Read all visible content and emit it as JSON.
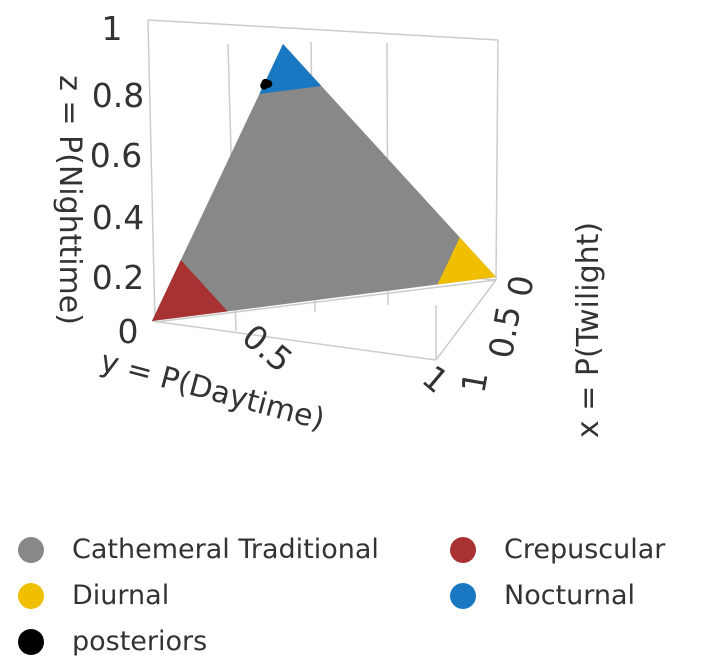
{
  "chart_data": {
    "type": "scatter3d",
    "axes": {
      "x": {
        "label": "x = P(Twilight)",
        "ticks": [
          "0",
          "0.5",
          "1"
        ],
        "range": [
          0,
          1
        ]
      },
      "y": {
        "label": "y = P(Daytime)",
        "ticks": [
          "0",
          "0.5",
          "1"
        ],
        "range": [
          0,
          1
        ]
      },
      "z": {
        "label": "z = P(Nighttime)",
        "ticks": [
          "0",
          "0.2",
          "0.4",
          "0.6",
          "0.8",
          "1"
        ],
        "range": [
          0,
          1
        ]
      }
    },
    "grid": true,
    "regions": [
      {
        "name": "Cathemeral Traditional",
        "color": "#888888",
        "description": "central region of simplex"
      },
      {
        "name": "Crepuscular",
        "color": "#a83232",
        "vertex": "twilight"
      },
      {
        "name": "Diurnal",
        "color": "#f0c000",
        "vertex": "daytime"
      },
      {
        "name": "Nocturnal",
        "color": "#1a78c2",
        "vertex": "nighttime"
      }
    ],
    "posteriors": {
      "name": "posteriors",
      "color": "#000000",
      "points": [
        {
          "x": 0.01,
          "y": 0.02,
          "z": 0.97
        },
        {
          "x": 0.015,
          "y": 0.02,
          "z": 0.965
        },
        {
          "x": 0.02,
          "y": 0.015,
          "z": 0.965
        },
        {
          "x": 0.01,
          "y": 0.03,
          "z": 0.96
        }
      ]
    },
    "legend": {
      "placement": "bottom",
      "items": [
        {
          "label": "Cathemeral Traditional",
          "color": "#888888"
        },
        {
          "label": "Crepuscular",
          "color": "#a83232"
        },
        {
          "label": "Diurnal",
          "color": "#f0c000"
        },
        {
          "label": "Nocturnal",
          "color": "#1a78c2"
        },
        {
          "label": "posteriors",
          "color": "#000000"
        }
      ]
    }
  }
}
